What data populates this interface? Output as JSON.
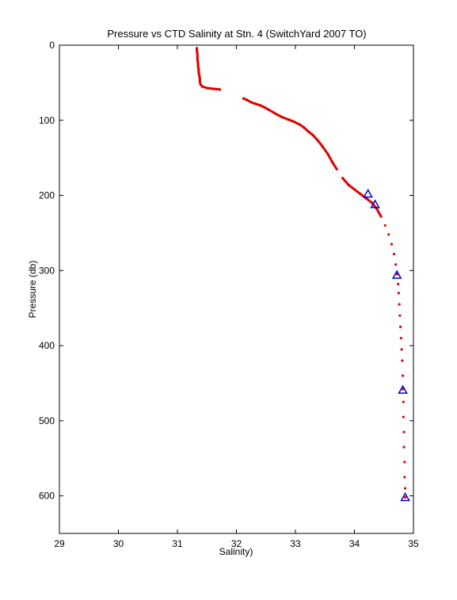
{
  "chart_data": {
    "type": "scatter",
    "title": "Pressure vs CTD Salinity at Stn. 4 (SwitchYard 2007 TO)",
    "xlabel": "Salinity)",
    "ylabel": "Pressure (db)",
    "xlim": [
      29,
      35
    ],
    "ylim": [
      650,
      0
    ],
    "y_reversed": true,
    "grid": false,
    "x_ticks": [
      "29",
      "30",
      "31",
      "32",
      "33",
      "34",
      "35"
    ],
    "y_ticks": [
      "0",
      "100",
      "200",
      "300",
      "400",
      "500",
      "600"
    ],
    "colors": {
      "ctd": "#e00000",
      "bottle": "#0000cc"
    },
    "series": [
      {
        "marker": "dot",
        "color": "#e00000",
        "points": [
          [
            31.33,
            4
          ],
          [
            31.33,
            8
          ],
          [
            31.34,
            12
          ],
          [
            31.34,
            16
          ],
          [
            31.34,
            20
          ],
          [
            31.35,
            24
          ],
          [
            31.35,
            28
          ],
          [
            31.36,
            32
          ],
          [
            31.36,
            36
          ],
          [
            31.37,
            40
          ],
          [
            31.38,
            44
          ],
          [
            31.38,
            48
          ],
          [
            31.39,
            52
          ],
          [
            31.42,
            55
          ],
          [
            31.5,
            57
          ],
          [
            31.6,
            58
          ],
          [
            31.72,
            59
          ],
          [
            32.12,
            71
          ],
          [
            32.18,
            73
          ],
          [
            32.25,
            76
          ],
          [
            32.32,
            78
          ],
          [
            32.4,
            80
          ],
          [
            32.48,
            83
          ],
          [
            32.55,
            86
          ],
          [
            32.68,
            92
          ],
          [
            32.78,
            96
          ],
          [
            32.88,
            99
          ],
          [
            32.98,
            102
          ],
          [
            33.08,
            106
          ],
          [
            33.15,
            110
          ],
          [
            33.22,
            115
          ],
          [
            33.3,
            120
          ],
          [
            33.38,
            127
          ],
          [
            33.46,
            135
          ],
          [
            33.55,
            145
          ],
          [
            33.62,
            155
          ],
          [
            33.7,
            165
          ],
          [
            33.8,
            177
          ],
          [
            33.9,
            186
          ],
          [
            34.0,
            192
          ],
          [
            34.1,
            198
          ],
          [
            34.2,
            204
          ],
          [
            34.3,
            210
          ],
          [
            34.38,
            218
          ],
          [
            34.45,
            228
          ],
          [
            34.52,
            240
          ],
          [
            34.58,
            252
          ],
          [
            34.63,
            265
          ],
          [
            34.67,
            278
          ],
          [
            34.7,
            292
          ],
          [
            34.72,
            305
          ],
          [
            34.74,
            318
          ],
          [
            34.75,
            330
          ],
          [
            34.76,
            345
          ],
          [
            34.77,
            360
          ],
          [
            34.78,
            375
          ],
          [
            34.79,
            390
          ],
          [
            34.8,
            405
          ],
          [
            34.81,
            420
          ],
          [
            34.82,
            440
          ],
          [
            34.82,
            458
          ],
          [
            34.83,
            475
          ],
          [
            34.83,
            495
          ],
          [
            34.84,
            515
          ],
          [
            34.84,
            535
          ],
          [
            34.85,
            555
          ],
          [
            34.85,
            575
          ],
          [
            34.86,
            590
          ],
          [
            34.86,
            602
          ]
        ]
      },
      {
        "marker": "triangle",
        "color": "#0000cc",
        "points": [
          [
            34.23,
            198
          ],
          [
            34.35,
            212
          ],
          [
            34.72,
            306
          ],
          [
            34.82,
            459
          ],
          [
            34.86,
            602
          ]
        ]
      }
    ]
  }
}
